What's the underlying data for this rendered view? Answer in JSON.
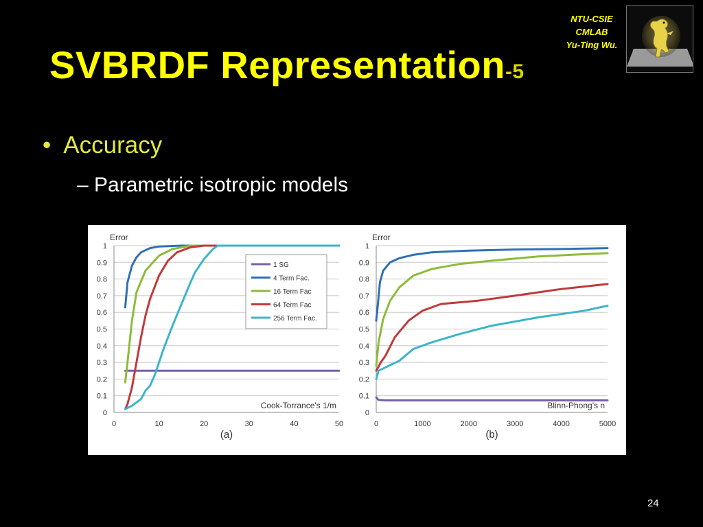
{
  "slide": {
    "title": "SVBRDF Representation",
    "title_suffix": "-5",
    "logo_lines": [
      "NTU-CSIE",
      "CMLAB",
      "Yu-Ting Wu."
    ],
    "bullet": "Accuracy",
    "subbullet": "– Parametric isotropic models",
    "page_number": "24",
    "colors": {
      "title": "#ffff00",
      "bullet": "#e4e83a",
      "background": "#000000"
    }
  },
  "chart_data": [
    {
      "type": "line",
      "panel_label": "(a)",
      "ylabel": "Error",
      "xlabel": "Cook-Torrance's 1/m",
      "xlim": [
        0,
        50
      ],
      "ylim": [
        0,
        1
      ],
      "xticks": [
        "0",
        "10",
        "20",
        "30",
        "40",
        "50"
      ],
      "yticks": [
        "0",
        "0.1",
        "0.2",
        "0.3",
        "0.4",
        "0.5",
        "0.6",
        "0.7",
        "0.8",
        "0.9",
        "1"
      ],
      "grid": true,
      "legend_position": "top-right",
      "series": [
        {
          "name": "1 SG",
          "color": "#7b5fa8",
          "points": [
            [
              2.5,
              0.25
            ],
            [
              10,
              0.25
            ],
            [
              25,
              0.25
            ],
            [
              50,
              0.25
            ]
          ]
        },
        {
          "name": "4 Term Fac.",
          "color": "#2f6fb5",
          "points": [
            [
              2.5,
              0.63
            ],
            [
              3,
              0.78
            ],
            [
              4,
              0.88
            ],
            [
              5,
              0.93
            ],
            [
              6,
              0.96
            ],
            [
              8,
              0.985
            ],
            [
              10,
              0.995
            ],
            [
              15,
              1
            ],
            [
              50,
              1
            ]
          ]
        },
        {
          "name": "16 Term Fac",
          "color": "#8dbb3a",
          "points": [
            [
              2.5,
              0.18
            ],
            [
              3,
              0.3
            ],
            [
              4,
              0.55
            ],
            [
              5,
              0.72
            ],
            [
              7,
              0.85
            ],
            [
              10,
              0.94
            ],
            [
              13,
              0.98
            ],
            [
              17,
              1
            ],
            [
              50,
              1
            ]
          ]
        },
        {
          "name": "64 Term Fac",
          "color": "#c1393b",
          "points": [
            [
              2.5,
              0.02
            ],
            [
              3,
              0.05
            ],
            [
              4,
              0.15
            ],
            [
              5,
              0.3
            ],
            [
              6,
              0.45
            ],
            [
              7,
              0.58
            ],
            [
              8,
              0.68
            ],
            [
              10,
              0.82
            ],
            [
              12,
              0.91
            ],
            [
              14,
              0.96
            ],
            [
              17,
              0.99
            ],
            [
              20,
              1
            ],
            [
              50,
              1
            ]
          ]
        },
        {
          "name": "256 Term Fac.",
          "color": "#3cb5c8",
          "points": [
            [
              2.5,
              0.02
            ],
            [
              4,
              0.04
            ],
            [
              6,
              0.08
            ],
            [
              7,
              0.13
            ],
            [
              8,
              0.16
            ],
            [
              9,
              0.22
            ],
            [
              10,
              0.3
            ],
            [
              11,
              0.38
            ],
            [
              13,
              0.52
            ],
            [
              15,
              0.65
            ],
            [
              17,
              0.78
            ],
            [
              18,
              0.84
            ],
            [
              20,
              0.92
            ],
            [
              22,
              0.98
            ],
            [
              23,
              1
            ],
            [
              50,
              1
            ]
          ]
        }
      ]
    },
    {
      "type": "line",
      "panel_label": "(b)",
      "ylabel": "Error",
      "xlabel": "Blinn-Phong's n",
      "xlim": [
        0,
        5000
      ],
      "ylim": [
        0,
        1
      ],
      "xticks": [
        "0",
        "1000",
        "2000",
        "3000",
        "4000",
        "5000"
      ],
      "yticks": [
        "0",
        "0.1",
        "0.2",
        "0.3",
        "0.4",
        "0.5",
        "0.6",
        "0.7",
        "0.8",
        "0.9",
        "1"
      ],
      "grid": true,
      "series": [
        {
          "name": "1 SG",
          "color": "#7b5fa8",
          "points": [
            [
              0,
              0.09
            ],
            [
              50,
              0.075
            ],
            [
              200,
              0.072
            ],
            [
              1000,
              0.072
            ],
            [
              3000,
              0.072
            ],
            [
              5000,
              0.072
            ]
          ]
        },
        {
          "name": "4 Term Fac.",
          "color": "#2f6fb5",
          "points": [
            [
              0,
              0.55
            ],
            [
              30,
              0.63
            ],
            [
              80,
              0.78
            ],
            [
              150,
              0.85
            ],
            [
              300,
              0.9
            ],
            [
              500,
              0.925
            ],
            [
              800,
              0.945
            ],
            [
              1200,
              0.96
            ],
            [
              2000,
              0.97
            ],
            [
              3000,
              0.977
            ],
            [
              4000,
              0.98
            ],
            [
              5000,
              0.985
            ]
          ]
        },
        {
          "name": "16 Term Fac",
          "color": "#8dbb3a",
          "points": [
            [
              0,
              0.28
            ],
            [
              50,
              0.42
            ],
            [
              150,
              0.56
            ],
            [
              300,
              0.67
            ],
            [
              500,
              0.75
            ],
            [
              800,
              0.82
            ],
            [
              1200,
              0.86
            ],
            [
              1800,
              0.89
            ],
            [
              2500,
              0.91
            ],
            [
              3500,
              0.935
            ],
            [
              4200,
              0.945
            ],
            [
              5000,
              0.955
            ]
          ]
        },
        {
          "name": "64 Term Fac",
          "color": "#c1393b",
          "points": [
            [
              0,
              0.25
            ],
            [
              100,
              0.3
            ],
            [
              200,
              0.34
            ],
            [
              400,
              0.45
            ],
            [
              700,
              0.55
            ],
            [
              1000,
              0.61
            ],
            [
              1400,
              0.65
            ],
            [
              1800,
              0.66
            ],
            [
              2200,
              0.67
            ],
            [
              3000,
              0.7
            ],
            [
              4000,
              0.74
            ],
            [
              5000,
              0.77
            ]
          ]
        },
        {
          "name": "256 Term Fac.",
          "color": "#3cb5c8",
          "points": [
            [
              0,
              0.2
            ],
            [
              50,
              0.25
            ],
            [
              200,
              0.27
            ],
            [
              500,
              0.31
            ],
            [
              800,
              0.38
            ],
            [
              1200,
              0.42
            ],
            [
              1800,
              0.47
            ],
            [
              2500,
              0.52
            ],
            [
              3500,
              0.57
            ],
            [
              4500,
              0.61
            ],
            [
              5000,
              0.64
            ]
          ]
        }
      ]
    }
  ]
}
